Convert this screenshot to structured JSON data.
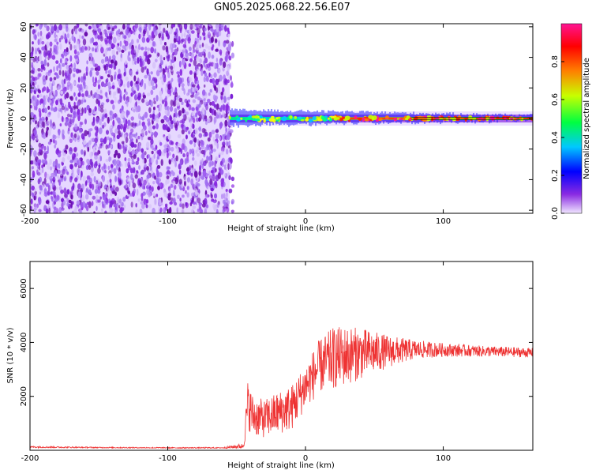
{
  "title": "GN05.2025.068.22.56.E07",
  "chart_data": [
    {
      "type": "heatmap",
      "xlabel": "Height of straight line (km)",
      "ylabel": "Frequency (Hz)",
      "xlim": [
        -200,
        165
      ],
      "ylim": [
        -62,
        62
      ],
      "xticks": [
        -200,
        -100,
        0,
        100
      ],
      "yticks": [
        60,
        40,
        20,
        0,
        -20,
        -40,
        -60
      ],
      "noise_region_x": [
        -200,
        -55
      ],
      "signal_region_x": [
        -55,
        165
      ],
      "signal_center_freq_hz": 0,
      "colorbar": {
        "label": "Normalized spectral amplitude",
        "range": [
          0,
          1
        ],
        "ticks": [
          0.0,
          0.2,
          0.4,
          0.6,
          0.8
        ],
        "colors": [
          "#f0e6ff",
          "#8a2be2",
          "#0000ff",
          "#00c8ff",
          "#00ff40",
          "#c8ff00",
          "#ff8000",
          "#ff0000",
          "#ff1493"
        ]
      }
    },
    {
      "type": "line",
      "xlabel": "Height of straight line (km)",
      "ylabel": "SNR (10 * v/v)",
      "xlim": [
        -200,
        165
      ],
      "ylim": [
        0,
        7000
      ],
      "xticks": [
        -200,
        -100,
        0,
        100
      ],
      "yticks": [
        2000,
        4000,
        6000
      ],
      "color": "#ee3333",
      "envelope": {
        "x": [
          -200,
          -150,
          -100,
          -60,
          -45,
          -42,
          -38,
          -30,
          -20,
          -10,
          0,
          10,
          20,
          30,
          40,
          60,
          80,
          100,
          130,
          165
        ],
        "baseline": [
          120,
          100,
          90,
          90,
          150,
          1600,
          1200,
          1100,
          1300,
          1500,
          2300,
          3000,
          3300,
          3400,
          3500,
          3600,
          3700,
          3700,
          3650,
          3600
        ],
        "amplitude": [
          60,
          40,
          40,
          40,
          200,
          1800,
          1500,
          1400,
          1600,
          1700,
          1700,
          2000,
          2300,
          2200,
          1900,
          1200,
          700,
          500,
          400,
          350
        ]
      }
    }
  ]
}
